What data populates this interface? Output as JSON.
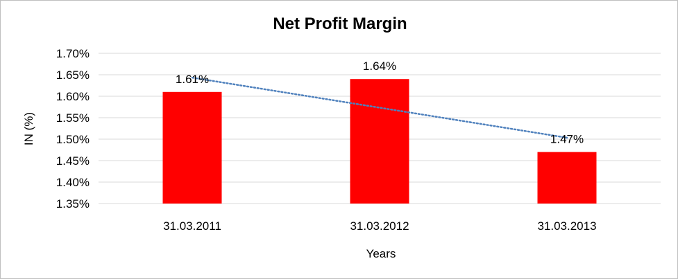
{
  "chart_data": {
    "type": "bar",
    "title": "Net Profit Margin",
    "xlabel": "Years",
    "ylabel": "IN (%)",
    "categories": [
      "31.03.2011",
      "31.03.2012",
      "31.03.2013"
    ],
    "values": [
      1.61,
      1.64,
      1.47
    ],
    "data_labels": [
      "1.61%",
      "1.64%",
      "1.47%"
    ],
    "ylim": [
      1.35,
      1.7
    ],
    "yticks": [
      1.35,
      1.4,
      1.45,
      1.5,
      1.55,
      1.6,
      1.65,
      1.7
    ],
    "ytick_labels": [
      "1.35%",
      "1.40%",
      "1.45%",
      "1.50%",
      "1.55%",
      "1.60%",
      "1.65%",
      "1.70%"
    ],
    "bar_color": "#ff0000",
    "trendline": {
      "type": "linear",
      "style": "dotted",
      "color": "#4f81bd"
    },
    "grid": true,
    "legend": "none"
  }
}
